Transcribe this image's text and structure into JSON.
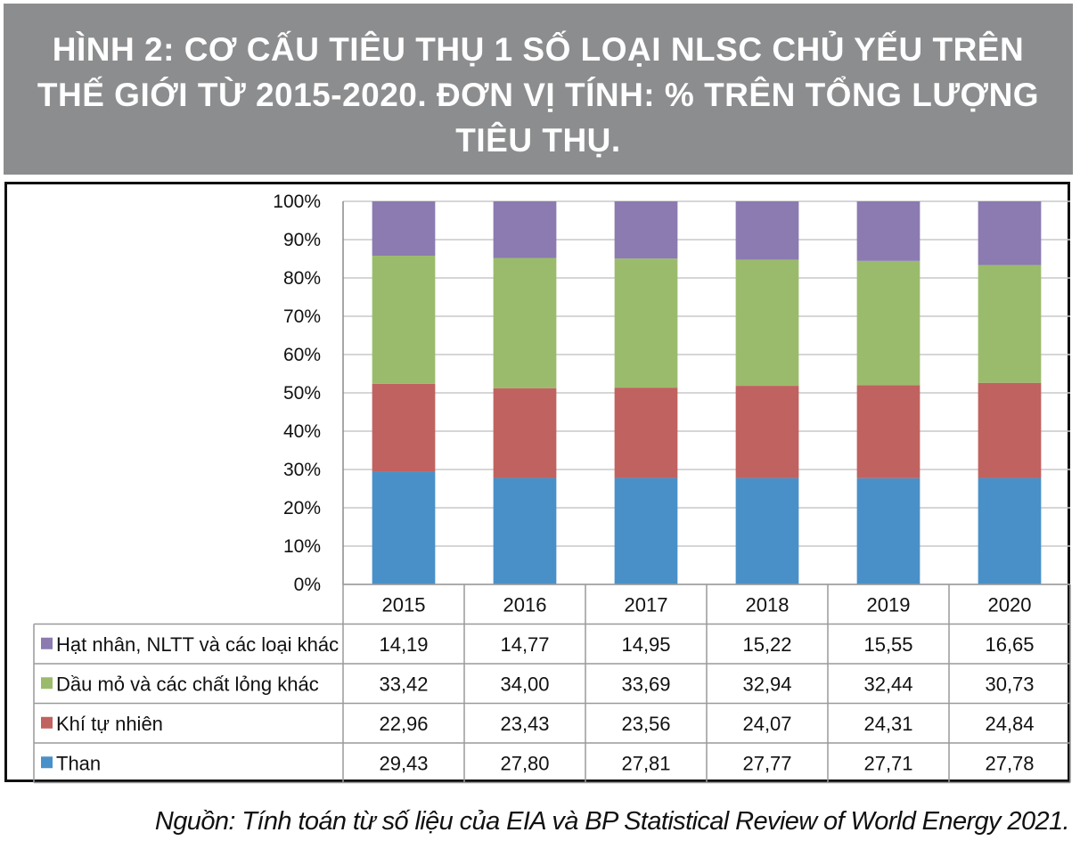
{
  "title": "HÌNH 2: CƠ CẤU TIÊU THỤ 1 SỐ LOẠI NLSC CHỦ YẾU TRÊN THẾ GIỚI TỪ 2015-2020. ĐƠN VỊ TÍNH: % TRÊN TỔNG LƯỢNG TIÊU THỤ.",
  "source": "Nguồn: Tính toán từ số liệu của EIA và BP Statistical Review of World Energy 2021.",
  "chart_data": {
    "type": "bar",
    "stacked": "percent",
    "categories": [
      "2015",
      "2016",
      "2017",
      "2018",
      "2019",
      "2020"
    ],
    "y_ticks": [
      "0%",
      "10%",
      "20%",
      "30%",
      "40%",
      "50%",
      "60%",
      "70%",
      "80%",
      "90%",
      "100%"
    ],
    "ylim": [
      0,
      100
    ],
    "grid": true,
    "legend": "data-table",
    "series": [
      {
        "name": "Hạt nhân, NLTT và các loại khác",
        "color": "#8b7bb0",
        "values": [
          14.19,
          14.77,
          14.95,
          15.22,
          15.55,
          16.65
        ],
        "labels": [
          "14,19",
          "14,77",
          "14,95",
          "15,22",
          "15,55",
          "16,65"
        ]
      },
      {
        "name": "Dầu mỏ và các chất lỏng khác",
        "color": "#9bbb6c",
        "values": [
          33.42,
          34.0,
          33.69,
          32.94,
          32.44,
          30.73
        ],
        "labels": [
          "33,42",
          "34,00",
          "33,69",
          "32,94",
          "32,44",
          "30,73"
        ]
      },
      {
        "name": "Khí tự nhiên",
        "color": "#c0625f",
        "values": [
          22.96,
          23.43,
          23.56,
          24.07,
          24.31,
          24.84
        ],
        "labels": [
          "22,96",
          "23,43",
          "23,56",
          "24,07",
          "24,31",
          "24,84"
        ]
      },
      {
        "name": "Than",
        "color": "#4a90c8",
        "values": [
          29.43,
          27.8,
          27.81,
          27.77,
          27.71,
          27.78
        ],
        "labels": [
          "29,43",
          "27,80",
          "27,81",
          "27,77",
          "27,71",
          "27,78"
        ]
      }
    ]
  }
}
